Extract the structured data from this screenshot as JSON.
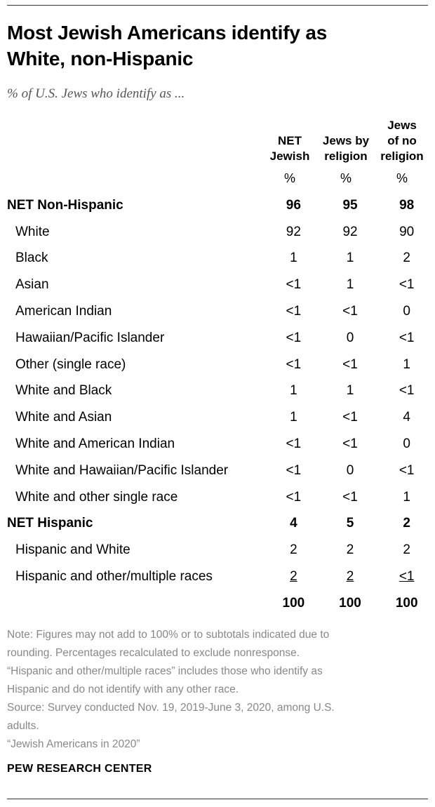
{
  "title_line1": "Most Jewish Americans identify as",
  "title_line2": "White, non-Hispanic",
  "subtitle": "% of U.S. Jews who identify as ...",
  "columns": [
    {
      "lines": [
        "",
        "NET",
        "Jewish"
      ]
    },
    {
      "lines": [
        "",
        "Jews by",
        "religion"
      ]
    },
    {
      "lines": [
        "Jews",
        "of no",
        "religion"
      ]
    }
  ],
  "unit": "%",
  "rows": [
    {
      "label": "NET Non-Hispanic",
      "bold": true,
      "values": [
        "96",
        "95",
        "98"
      ]
    },
    {
      "label": "White",
      "bold": false,
      "values": [
        "92",
        "92",
        "90"
      ]
    },
    {
      "label": "Black",
      "bold": false,
      "values": [
        "1",
        "1",
        "2"
      ]
    },
    {
      "label": "Asian",
      "bold": false,
      "values": [
        "<1",
        "1",
        "<1"
      ]
    },
    {
      "label": "American Indian",
      "bold": false,
      "values": [
        "<1",
        "<1",
        "0"
      ]
    },
    {
      "label": "Hawaiian/Pacific Islander",
      "bold": false,
      "values": [
        "<1",
        "0",
        "<1"
      ]
    },
    {
      "label": "Other (single race)",
      "bold": false,
      "values": [
        "<1",
        "<1",
        "1"
      ]
    },
    {
      "label": "White and Black",
      "bold": false,
      "values": [
        "1",
        "1",
        "<1"
      ]
    },
    {
      "label": "White and Asian",
      "bold": false,
      "values": [
        "1",
        "<1",
        "4"
      ]
    },
    {
      "label": "White and American Indian",
      "bold": false,
      "values": [
        "<1",
        "<1",
        "0"
      ]
    },
    {
      "label": "White and Hawaiian/Pacific Islander",
      "bold": false,
      "values": [
        "<1",
        "0",
        "<1"
      ]
    },
    {
      "label": "White and other single race",
      "bold": false,
      "values": [
        "<1",
        "<1",
        "1"
      ]
    },
    {
      "label": "NET Hispanic",
      "bold": true,
      "values": [
        "4",
        "5",
        "2"
      ]
    },
    {
      "label": "Hispanic and White",
      "bold": false,
      "values": [
        "2",
        "2",
        "2"
      ]
    },
    {
      "label": "Hispanic and other/multiple races",
      "bold": false,
      "underline": true,
      "values": [
        "2",
        "2",
        "<1"
      ]
    }
  ],
  "totals": [
    "100",
    "100",
    "100"
  ],
  "note_lines": [
    "Note: Figures may not add to 100% or to subtotals indicated due to",
    "rounding. Percentages recalculated to exclude nonresponse.",
    "“Hispanic and other/multiple races” includes those who identify as",
    "Hispanic and do not identify with any other race.",
    "Source: Survey conducted Nov. 19, 2019-June 3, 2020, among U.S.",
    "adults.",
    "“Jewish Americans in 2020”"
  ],
  "source_brand": "PEW RESEARCH CENTER",
  "chart_data": {
    "type": "table",
    "title": "Most Jewish Americans identify as White, non-Hispanic",
    "subtitle": "% of U.S. Jews who identify as ...",
    "columns": [
      "NET Jewish",
      "Jews by religion",
      "Jews of no religion"
    ],
    "rows": [
      {
        "label": "NET Non-Hispanic",
        "values": [
          "96",
          "95",
          "98"
        ]
      },
      {
        "label": "White",
        "values": [
          "92",
          "92",
          "90"
        ]
      },
      {
        "label": "Black",
        "values": [
          "1",
          "1",
          "2"
        ]
      },
      {
        "label": "Asian",
        "values": [
          "<1",
          "1",
          "<1"
        ]
      },
      {
        "label": "American Indian",
        "values": [
          "<1",
          "<1",
          "0"
        ]
      },
      {
        "label": "Hawaiian/Pacific Islander",
        "values": [
          "<1",
          "0",
          "<1"
        ]
      },
      {
        "label": "Other (single race)",
        "values": [
          "<1",
          "<1",
          "1"
        ]
      },
      {
        "label": "White and Black",
        "values": [
          "1",
          "1",
          "<1"
        ]
      },
      {
        "label": "White and Asian",
        "values": [
          "1",
          "<1",
          "4"
        ]
      },
      {
        "label": "White and American Indian",
        "values": [
          "<1",
          "<1",
          "0"
        ]
      },
      {
        "label": "White and Hawaiian/Pacific Islander",
        "values": [
          "<1",
          "0",
          "<1"
        ]
      },
      {
        "label": "White and other single race",
        "values": [
          "<1",
          "<1",
          "1"
        ]
      },
      {
        "label": "NET Hispanic",
        "values": [
          "4",
          "5",
          "2"
        ]
      },
      {
        "label": "Hispanic and White",
        "values": [
          "2",
          "2",
          "2"
        ]
      },
      {
        "label": "Hispanic and other/multiple races",
        "values": [
          "2",
          "2",
          "<1"
        ]
      }
    ],
    "totals": [
      "100",
      "100",
      "100"
    ]
  }
}
